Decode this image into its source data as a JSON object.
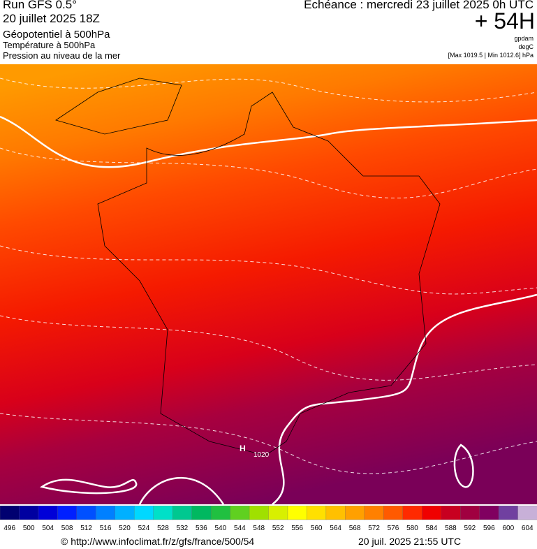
{
  "header": {
    "run": "Run GFS 0.5°",
    "date": "20 juillet 2025 18Z",
    "line1": "Géopotentiel à 500hPa",
    "line2": "Température à 500hPa",
    "line3": "Pression au niveau de la mer",
    "echeance": "Echéance : mercredi 23 juillet 2025 0h UTC",
    "lead": "+ 54H",
    "unit1": "gpdam",
    "unit2": "degC",
    "pressure": "[Max 1019.5 | Min 1012.6] hPa"
  },
  "map": {
    "high": "H",
    "isobar": "1020"
  },
  "legend": {
    "labels": [
      496,
      500,
      504,
      508,
      512,
      516,
      520,
      524,
      528,
      532,
      536,
      540,
      544,
      548,
      552,
      556,
      560,
      564,
      568,
      572,
      576,
      580,
      584,
      588,
      592,
      596,
      600,
      604
    ],
    "colors": [
      "#000070",
      "#0000a0",
      "#0000d8",
      "#0020ff",
      "#0050ff",
      "#0080ff",
      "#00b0ff",
      "#00d8ff",
      "#00e0c8",
      "#00c890",
      "#00b860",
      "#20c040",
      "#60d020",
      "#a0e000",
      "#d8f000",
      "#ffff00",
      "#ffe000",
      "#ffc000",
      "#ffa000",
      "#ff8000",
      "#ff5a00",
      "#ff2a00",
      "#f00000",
      "#c80020",
      "#a00040",
      "#800060",
      "#7040a0",
      "#c8b0d8"
    ]
  },
  "footer": {
    "url": "© http://www.infoclimat.fr/z/gfs/france/500/54",
    "stamp": "20 juil. 2025 21:55 UTC"
  }
}
